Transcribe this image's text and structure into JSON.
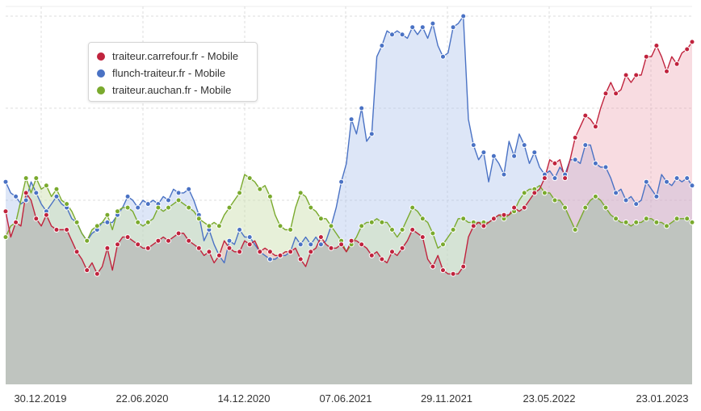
{
  "chart_data": {
    "type": "area",
    "x_tick_labels": [
      "30.12.2019",
      "22.06.2020",
      "14.12.2020",
      "07.06.2021",
      "29.11.2021",
      "23.05.2022",
      "23.01.2023"
    ],
    "ylim": [
      0,
      100
    ],
    "grid": true,
    "legend_position": "top-left",
    "series": [
      {
        "name": "traiteur.carrefour.fr - Mobile",
        "color": "#c0233d",
        "fill": "rgba(236,156,168,0.35)",
        "values": [
          47,
          40,
          44,
          43,
          52,
          50,
          45,
          43,
          46,
          43,
          42,
          42,
          42,
          39,
          36,
          34,
          31,
          33,
          30,
          32,
          37,
          31,
          38,
          40,
          40,
          39,
          38,
          37,
          37,
          38,
          39,
          40,
          39,
          40,
          41,
          41,
          39,
          38,
          37,
          35,
          36,
          33,
          35,
          39,
          37,
          36,
          36,
          39,
          38,
          39,
          36,
          37,
          36,
          35,
          35,
          36,
          36,
          37,
          34,
          32,
          36,
          37,
          40,
          38,
          37,
          37,
          38,
          36,
          39,
          39,
          38,
          37,
          35,
          36,
          34,
          33,
          36,
          35,
          37,
          39,
          42,
          41,
          40,
          34,
          32,
          35,
          31,
          30,
          30,
          30,
          32,
          40,
          43,
          44,
          43,
          44,
          45,
          46,
          46,
          46,
          48,
          47,
          48,
          50,
          52,
          53,
          56,
          61,
          60,
          61,
          56,
          61,
          67,
          70,
          73,
          72,
          70,
          75,
          79,
          82,
          79,
          80,
          84,
          82,
          84,
          84,
          89,
          89,
          92,
          89,
          85,
          89,
          87,
          90,
          91,
          93
        ]
      },
      {
        "name": "flunch-traiteur.fr - Mobile",
        "color": "#4a72c4",
        "fill": "rgba(173,196,236,0.42)",
        "values": [
          55,
          52,
          51,
          49,
          50,
          55,
          52,
          49,
          47,
          49,
          51,
          49,
          48,
          45,
          44,
          41,
          39,
          41,
          42,
          44,
          44,
          44,
          46,
          48,
          51,
          50,
          48,
          50,
          49,
          50,
          49,
          51,
          50,
          53,
          52,
          52,
          53,
          50,
          46,
          39,
          42,
          38,
          35,
          33,
          39,
          38,
          42,
          40,
          40,
          38,
          36,
          35,
          34,
          34,
          35,
          35,
          36,
          40,
          38,
          40,
          38,
          40,
          38,
          39,
          43,
          48,
          55,
          60,
          72,
          68,
          75,
          66,
          68,
          89,
          92,
          96,
          95,
          96,
          95,
          94,
          97,
          95,
          97,
          94,
          98,
          92,
          89,
          90,
          97,
          98,
          100,
          72,
          65,
          61,
          63,
          55,
          62,
          60,
          57,
          66,
          62,
          68,
          65,
          60,
          63,
          59,
          57,
          58,
          56,
          59,
          57,
          61,
          61,
          60,
          65,
          65,
          60,
          59,
          59,
          56,
          52,
          53,
          50,
          51,
          49,
          50,
          55,
          53,
          51,
          57,
          55,
          54,
          56,
          55,
          56,
          54
        ]
      },
      {
        "name": "traiteur.auchan.fr - Mobile",
        "color": "#7aaa2e",
        "fill": "rgba(205,224,176,0.48)",
        "values": [
          40,
          43,
          44,
          50,
          56,
          52,
          56,
          53,
          54,
          51,
          53,
          50,
          49,
          47,
          44,
          41,
          39,
          42,
          43,
          44,
          46,
          42,
          47,
          48,
          48,
          47,
          44,
          43,
          44,
          45,
          48,
          47,
          48,
          49,
          50,
          49,
          48,
          47,
          45,
          44,
          43,
          44,
          43,
          46,
          48,
          50,
          52,
          57,
          56,
          55,
          53,
          54,
          51,
          46,
          43,
          42,
          42,
          48,
          52,
          51,
          48,
          47,
          45,
          45,
          43,
          41,
          39,
          36,
          38,
          40,
          43,
          44,
          44,
          45,
          44,
          44,
          42,
          40,
          42,
          45,
          48,
          47,
          45,
          44,
          41,
          37,
          38,
          40,
          42,
          45,
          45,
          44,
          44,
          44,
          44,
          44,
          45,
          46,
          45,
          46,
          47,
          50,
          52,
          53,
          53,
          54,
          52,
          52,
          50,
          50,
          48,
          45,
          42,
          45,
          48,
          50,
          51,
          50,
          48,
          46,
          45,
          44,
          44,
          43,
          44,
          44,
          45,
          45,
          44,
          44,
          43,
          44,
          45,
          45,
          45,
          44
        ]
      }
    ]
  }
}
